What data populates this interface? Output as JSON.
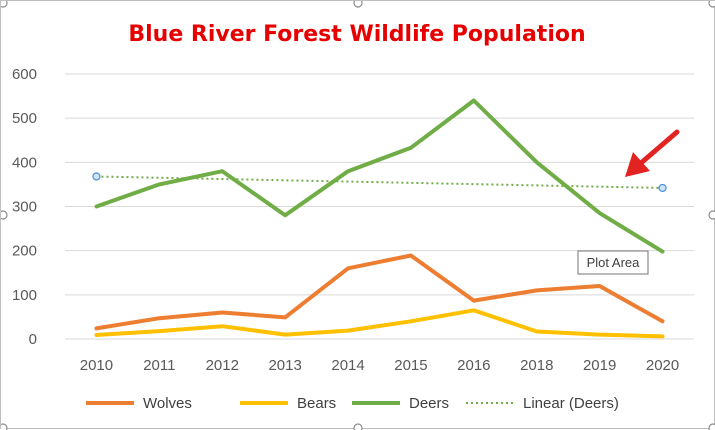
{
  "colors": {
    "title": "#e60000",
    "wolves": "#ed7d31",
    "bears": "#ffc000",
    "deers": "#70ad47",
    "trend": "#70ad47",
    "arrow": "#e32222",
    "grid": "#d9d9d9"
  },
  "tooltip": {
    "label": "Plot Area"
  },
  "chart_data": {
    "type": "line",
    "title": "Blue River Forest Wildlife Population",
    "xlabel": "",
    "ylabel": "",
    "ylim": [
      0,
      600
    ],
    "yticks": [
      "0",
      "100",
      "200",
      "300",
      "400",
      "500",
      "600"
    ],
    "grid": true,
    "legend_position": "bottom",
    "categories": [
      "2010",
      "2011",
      "2012",
      "2013",
      "2014",
      "2015",
      "2016",
      "2018",
      "2019",
      "2020"
    ],
    "series": [
      {
        "name": "Wolves",
        "key": "wolves",
        "values": [
          24,
          47,
          60,
          49,
          160,
          189,
          87,
          110,
          120,
          40
        ]
      },
      {
        "name": "Bears",
        "key": "bears",
        "values": [
          9,
          18,
          29,
          10,
          19,
          40,
          65,
          17,
          10,
          6
        ]
      },
      {
        "name": "Deers",
        "key": "deers",
        "values": [
          300,
          350,
          380,
          280,
          380,
          433,
          540,
          400,
          285,
          198
        ]
      }
    ],
    "trendline": {
      "name": "Linear (Deers)",
      "of": "Deers",
      "start": 368,
      "end": 342
    }
  }
}
